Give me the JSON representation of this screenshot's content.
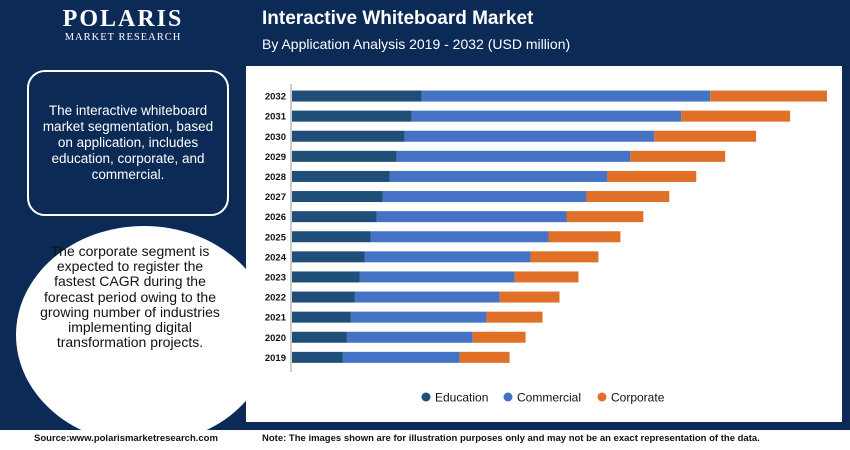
{
  "logo": {
    "name": "POLARIS",
    "tagline": "MARKET RESEARCH"
  },
  "info_text": "The interactive whiteboard market segmentation, based on application, includes education, corporate, and commercial.",
  "highlight_text": "The corporate segment is expected to register the fastest CAGR during the forecast period owing to the growing number of industries implementing digital transformation projects.",
  "footer": {
    "source": "Source:www.polarismarketresearch.com",
    "note": "Note: The images shown are for illustration purposes only and may not be an exact representation of the data."
  },
  "colors": {
    "education": "#1f4e79",
    "commercial": "#4472c4",
    "corporate": "#e07028",
    "background": "#0b2a56"
  },
  "chart_data": {
    "type": "bar",
    "orientation": "horizontal",
    "stacked": true,
    "title": "Interactive Whiteboard Market",
    "subtitle": "By Application Analysis 2019 - 2032 (USD million)",
    "categories": [
      "2032",
      "2031",
      "2030",
      "2029",
      "2028",
      "2027",
      "2026",
      "2025",
      "2024",
      "2023",
      "2022",
      "2021",
      "2020",
      "2019"
    ],
    "series": [
      {
        "name": "Education",
        "color": "#1f4e79",
        "values": [
          130,
          120,
          113,
          105,
          98,
          91,
          85,
          79,
          73,
          68,
          63,
          59,
          55,
          51
        ]
      },
      {
        "name": "Commercial",
        "color": "#4472c4",
        "values": [
          289,
          270,
          250,
          234,
          218,
          204,
          190,
          178,
          166,
          155,
          145,
          136,
          126,
          117
        ]
      },
      {
        "name": "Corporate",
        "color": "#e07028",
        "values": [
          117,
          109,
          102,
          95,
          89,
          83,
          77,
          72,
          68,
          64,
          60,
          56,
          53,
          50
        ]
      }
    ],
    "xlim": [
      0,
      545
    ],
    "grid": false,
    "legend": "bottom"
  }
}
